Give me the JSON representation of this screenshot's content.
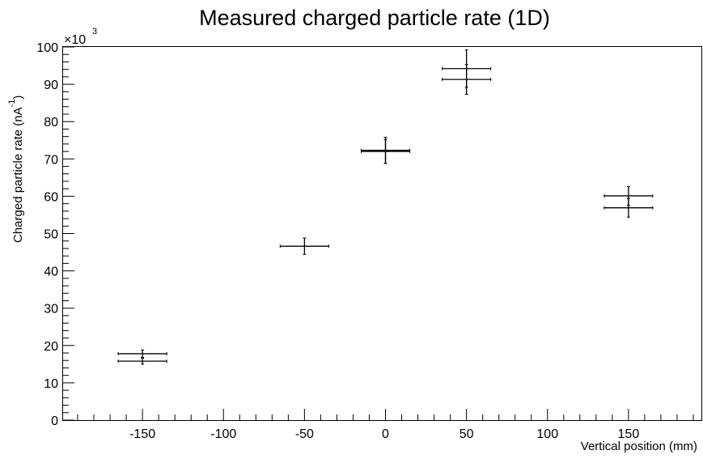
{
  "chart_data": {
    "type": "scatter",
    "title": "Measured charged particle rate (1D)",
    "xlabel": "Vertical position (mm)",
    "ylabel": "Charged particle rate (nA",
    "ylabel_superscript": "-1",
    "ylabel_suffix": ")",
    "y_multiplier": "×10",
    "y_multiplier_exponent": "3",
    "xlim": [
      -199,
      195
    ],
    "ylim": [
      0,
      100
    ],
    "x_ticks": [
      -150,
      -100,
      -50,
      0,
      50,
      100,
      150
    ],
    "x_tick_labels": [
      "-150",
      "-100",
      "-50",
      "0",
      "50",
      "100",
      "150"
    ],
    "y_ticks": [
      0,
      10,
      20,
      30,
      40,
      50,
      60,
      70,
      80,
      90,
      100
    ],
    "y_tick_labels": [
      "0",
      "10",
      "20",
      "30",
      "40",
      "50",
      "60",
      "70",
      "80",
      "90",
      "100"
    ],
    "grid": false,
    "legend": "none",
    "series": [
      {
        "points": [
          {
            "x": -150,
            "xerr": 15,
            "y": 17.8,
            "yerr": 1.0
          },
          {
            "x": -150,
            "xerr": 15,
            "y": 15.8,
            "yerr": 0.8
          },
          {
            "x": -50,
            "xerr": 15,
            "y": 46.6,
            "yerr": 2.2
          },
          {
            "x": 0,
            "xerr": 15,
            "y": 72.3,
            "yerr": 3.5
          },
          {
            "x": 0,
            "xerr": 15,
            "y": 72.0,
            "yerr": 3.2
          },
          {
            "x": 50,
            "xerr": 15,
            "y": 94.2,
            "yerr": 5.0
          },
          {
            "x": 50,
            "xerr": 15,
            "y": 91.3,
            "yerr": 4.0
          },
          {
            "x": 150,
            "xerr": 15,
            "y": 60.1,
            "yerr": 2.5
          },
          {
            "x": 150,
            "xerr": 15,
            "y": 56.9,
            "yerr": 2.5
          }
        ]
      }
    ]
  }
}
